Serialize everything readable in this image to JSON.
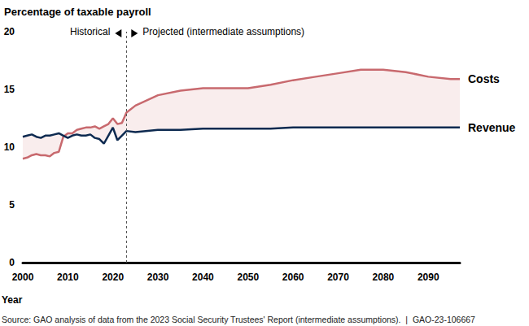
{
  "chart_data": {
    "type": "line",
    "y_label": "Percentage of taxable payroll",
    "x_label": "Year",
    "historical_label": "Historical",
    "projected_label": "Projected (intermediate assumptions)",
    "projection_start": 2023,
    "source": "Source: GAO analysis of data from the 2023 Social Security Trustees' Report (intermediate assumptions).  |  GAO-23-106667",
    "x": [
      2000,
      2001,
      2002,
      2003,
      2004,
      2005,
      2006,
      2007,
      2008,
      2009,
      2010,
      2011,
      2012,
      2013,
      2014,
      2015,
      2016,
      2017,
      2018,
      2019,
      2020,
      2021,
      2022,
      2023,
      2025,
      2030,
      2035,
      2040,
      2045,
      2050,
      2055,
      2060,
      2065,
      2070,
      2075,
      2080,
      2085,
      2090,
      2095,
      2097
    ],
    "series": [
      {
        "name": "Costs",
        "color": "#c8696e",
        "values": [
          9.0,
          9.1,
          9.3,
          9.4,
          9.3,
          9.3,
          9.2,
          9.5,
          9.6,
          10.9,
          11.2,
          11.2,
          11.5,
          11.6,
          11.7,
          11.7,
          11.8,
          11.6,
          11.8,
          12.0,
          12.5,
          12.0,
          12.1,
          13.0,
          13.6,
          14.5,
          14.9,
          15.1,
          15.1,
          15.1,
          15.4,
          15.8,
          16.1,
          16.4,
          16.7,
          16.7,
          16.5,
          16.1,
          15.9,
          15.9
        ]
      },
      {
        "name": "Revenue",
        "color": "#0d2a50",
        "values": [
          10.9,
          11.0,
          11.1,
          10.9,
          10.8,
          11.0,
          11.0,
          11.1,
          11.2,
          11.0,
          10.8,
          11.0,
          11.1,
          11.0,
          11.0,
          11.1,
          10.8,
          10.7,
          10.3,
          11.0,
          11.7,
          10.6,
          11.0,
          11.4,
          11.3,
          11.5,
          11.5,
          11.6,
          11.6,
          11.6,
          11.6,
          11.7,
          11.7,
          11.7,
          11.7,
          11.7,
          11.7,
          11.7,
          11.7,
          11.7
        ]
      }
    ],
    "xlim": [
      2000,
      2097
    ],
    "xticks": [
      2000,
      2010,
      2020,
      2030,
      2040,
      2050,
      2060,
      2070,
      2080,
      2090
    ],
    "ylim": [
      0,
      20
    ],
    "yticks": [
      0,
      5,
      10,
      15,
      20
    ],
    "grid": false
  }
}
